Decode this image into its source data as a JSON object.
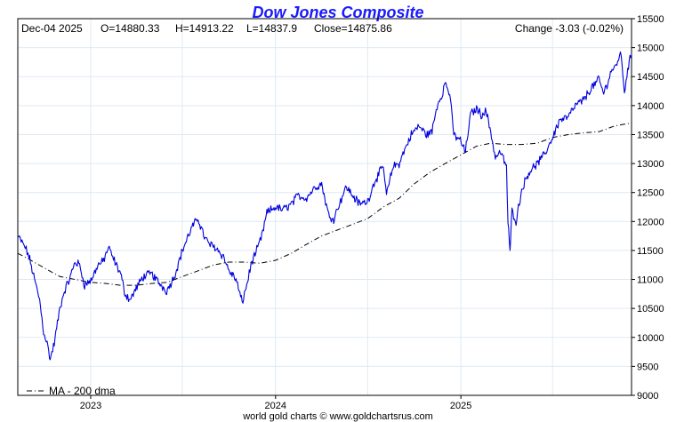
{
  "chart_data": {
    "type": "line",
    "title": "Dow Jones Composite",
    "info": {
      "date": "Dec-04  2025",
      "open": "O=14880.33",
      "high": "H=14913.22",
      "low": "L=14837.9",
      "close": "Close=14875.86",
      "change": "Change -3.03 (-0.02%)"
    },
    "y_axis": {
      "min": 9000,
      "max": 15500,
      "position": "right",
      "ticks": [
        9000,
        9500,
        10000,
        10500,
        11000,
        11500,
        12000,
        12500,
        13000,
        13500,
        14000,
        14500,
        15000,
        15500
      ]
    },
    "x_axis": {
      "ticks": [
        "2023",
        "2024",
        "2025"
      ],
      "gridlines": [
        "2023-01-01",
        "2023-07-01",
        "2024-01-01",
        "2024-07-01",
        "2025-01-01",
        "2025-07-01"
      ],
      "range": [
        "2022-08-10",
        "2025-12-04"
      ]
    },
    "grid": true,
    "legend": {
      "position": "bottom-left",
      "label": "MA - 200 dma"
    },
    "footer": "world gold charts © www.goldchartsrus.com",
    "colors": {
      "price": "#0000dd",
      "ma": "#000000",
      "title": "#1a1aff",
      "grid": "#dfe9f3"
    },
    "series": [
      {
        "style": "solid",
        "points": [
          [
            "2022-08-10",
            11750
          ],
          [
            "2022-08-25",
            11550
          ],
          [
            "2022-09-01",
            11400
          ],
          [
            "2022-09-12",
            11000
          ],
          [
            "2022-09-22",
            10650
          ],
          [
            "2022-09-30",
            10100
          ],
          [
            "2022-10-07",
            9900
          ],
          [
            "2022-10-13",
            9620
          ],
          [
            "2022-10-21",
            9900
          ],
          [
            "2022-11-01",
            10500
          ],
          [
            "2022-11-10",
            10800
          ],
          [
            "2022-11-20",
            11000
          ],
          [
            "2022-12-01",
            11300
          ],
          [
            "2022-12-10",
            11250
          ],
          [
            "2022-12-20",
            10900
          ],
          [
            "2023-01-03",
            11000
          ],
          [
            "2023-01-15",
            11250
          ],
          [
            "2023-01-25",
            11300
          ],
          [
            "2023-02-05",
            11550
          ],
          [
            "2023-02-15",
            11350
          ],
          [
            "2023-03-01",
            11100
          ],
          [
            "2023-03-10",
            10750
          ],
          [
            "2023-03-20",
            10650
          ],
          [
            "2023-04-01",
            10850
          ],
          [
            "2023-04-15",
            11050
          ],
          [
            "2023-05-01",
            11100
          ],
          [
            "2023-05-15",
            10950
          ],
          [
            "2023-05-31",
            10800
          ],
          [
            "2023-06-15",
            11050
          ],
          [
            "2023-07-01",
            11500
          ],
          [
            "2023-07-20",
            11900
          ],
          [
            "2023-08-01",
            12050
          ],
          [
            "2023-08-15",
            11700
          ],
          [
            "2023-08-25",
            11600
          ],
          [
            "2023-09-05",
            11550
          ],
          [
            "2023-09-20",
            11400
          ],
          [
            "2023-10-01",
            11150
          ],
          [
            "2023-10-15",
            11000
          ],
          [
            "2023-10-27",
            10600
          ],
          [
            "2023-11-05",
            10900
          ],
          [
            "2023-11-15",
            11300
          ],
          [
            "2023-11-25",
            11500
          ],
          [
            "2023-12-05",
            11750
          ],
          [
            "2023-12-15",
            12150
          ],
          [
            "2024-01-01",
            12250
          ],
          [
            "2024-01-15",
            12200
          ],
          [
            "2024-02-01",
            12300
          ],
          [
            "2024-02-15",
            12450
          ],
          [
            "2024-03-01",
            12400
          ],
          [
            "2024-03-20",
            12600
          ],
          [
            "2024-04-01",
            12650
          ],
          [
            "2024-04-15",
            12100
          ],
          [
            "2024-04-25",
            12050
          ],
          [
            "2024-05-10",
            12400
          ],
          [
            "2024-05-20",
            12600
          ],
          [
            "2024-06-01",
            12450
          ],
          [
            "2024-06-15",
            12300
          ],
          [
            "2024-07-01",
            12350
          ],
          [
            "2024-07-15",
            12700
          ],
          [
            "2024-08-01",
            12950
          ],
          [
            "2024-08-07",
            12450
          ],
          [
            "2024-08-20",
            12950
          ],
          [
            "2024-09-01",
            13000
          ],
          [
            "2024-09-15",
            13300
          ],
          [
            "2024-09-25",
            13500
          ],
          [
            "2024-10-10",
            13650
          ],
          [
            "2024-10-25",
            13500
          ],
          [
            "2024-11-05",
            13550
          ],
          [
            "2024-11-15",
            14000
          ],
          [
            "2024-11-25",
            14200
          ],
          [
            "2024-12-01",
            14400
          ],
          [
            "2024-12-10",
            14200
          ],
          [
            "2024-12-18",
            13500
          ],
          [
            "2024-12-31",
            13400
          ],
          [
            "2025-01-10",
            13200
          ],
          [
            "2025-01-20",
            13850
          ],
          [
            "2025-02-01",
            13950
          ],
          [
            "2025-02-10",
            13850
          ],
          [
            "2025-02-20",
            13900
          ],
          [
            "2025-03-01",
            13550
          ],
          [
            "2025-03-10",
            13100
          ],
          [
            "2025-03-20",
            13200
          ],
          [
            "2025-04-01",
            12950
          ],
          [
            "2025-04-04",
            12000
          ],
          [
            "2025-04-08",
            11480
          ],
          [
            "2025-04-12",
            12200
          ],
          [
            "2025-04-20",
            12000
          ],
          [
            "2025-05-01",
            12550
          ],
          [
            "2025-05-15",
            12850
          ],
          [
            "2025-06-01",
            13000
          ],
          [
            "2025-06-15",
            13150
          ],
          [
            "2025-07-01",
            13450
          ],
          [
            "2025-07-15",
            13750
          ],
          [
            "2025-08-01",
            13800
          ],
          [
            "2025-08-15",
            14000
          ],
          [
            "2025-09-01",
            14100
          ],
          [
            "2025-09-15",
            14300
          ],
          [
            "2025-10-01",
            14450
          ],
          [
            "2025-10-10",
            14200
          ],
          [
            "2025-10-25",
            14600
          ],
          [
            "2025-11-05",
            14700
          ],
          [
            "2025-11-12",
            14950
          ],
          [
            "2025-11-20",
            14250
          ],
          [
            "2025-11-28",
            14700
          ],
          [
            "2025-12-04",
            14876
          ]
        ]
      },
      {
        "name": "MA - 200 dma",
        "style": "dash-dot",
        "points": [
          [
            "2022-08-10",
            11450
          ],
          [
            "2022-09-01",
            11350
          ],
          [
            "2022-10-01",
            11200
          ],
          [
            "2022-11-01",
            11050
          ],
          [
            "2022-12-01",
            11000
          ],
          [
            "2023-01-01",
            10950
          ],
          [
            "2023-02-01",
            10930
          ],
          [
            "2023-03-01",
            10900
          ],
          [
            "2023-04-01",
            10900
          ],
          [
            "2023-05-01",
            10930
          ],
          [
            "2023-06-01",
            10950
          ],
          [
            "2023-07-01",
            11050
          ],
          [
            "2023-08-01",
            11150
          ],
          [
            "2023-09-01",
            11250
          ],
          [
            "2023-10-01",
            11300
          ],
          [
            "2023-11-01",
            11300
          ],
          [
            "2023-12-01",
            11280
          ],
          [
            "2024-01-01",
            11330
          ],
          [
            "2024-02-01",
            11450
          ],
          [
            "2024-03-01",
            11600
          ],
          [
            "2024-04-01",
            11750
          ],
          [
            "2024-05-01",
            11850
          ],
          [
            "2024-06-01",
            11950
          ],
          [
            "2024-07-01",
            12050
          ],
          [
            "2024-08-01",
            12250
          ],
          [
            "2024-09-01",
            12400
          ],
          [
            "2024-10-01",
            12650
          ],
          [
            "2024-11-01",
            12850
          ],
          [
            "2024-12-01",
            13000
          ],
          [
            "2025-01-01",
            13150
          ],
          [
            "2025-02-01",
            13300
          ],
          [
            "2025-03-01",
            13350
          ],
          [
            "2025-04-01",
            13330
          ],
          [
            "2025-05-01",
            13330
          ],
          [
            "2025-06-01",
            13350
          ],
          [
            "2025-07-01",
            13450
          ],
          [
            "2025-08-01",
            13500
          ],
          [
            "2025-09-01",
            13530
          ],
          [
            "2025-10-01",
            13550
          ],
          [
            "2025-11-01",
            13650
          ],
          [
            "2025-12-04",
            13700
          ]
        ]
      }
    ]
  }
}
